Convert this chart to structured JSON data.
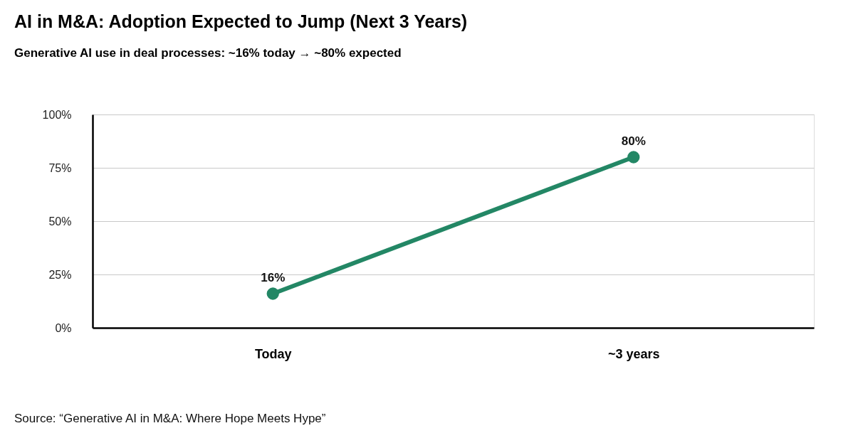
{
  "chart_data": {
    "type": "line",
    "title": "AI in M&A: Adoption Expected to Jump (Next 3 Years)",
    "subtitle": "Generative AI use in deal processes: ~16% today → ~80% expected",
    "categories": [
      "Today",
      "~3 years"
    ],
    "series": [
      {
        "color": "#238765",
        "values": [
          16,
          80
        ],
        "value_labels": [
          "16%",
          "80%"
        ]
      }
    ],
    "ylim": [
      0,
      100
    ],
    "yticks": [
      {
        "value": 0,
        "label": "0%"
      },
      {
        "value": 25,
        "label": "25%"
      },
      {
        "value": 50,
        "label": "50%"
      },
      {
        "value": 75,
        "label": "75%"
      },
      {
        "value": 100,
        "label": "100%"
      }
    ],
    "grid": "y",
    "marker": "circle",
    "line_style": "solid",
    "annotations": [
      "Source: “Generative AI in M&A: Where Hope Meets Hype”"
    ]
  }
}
